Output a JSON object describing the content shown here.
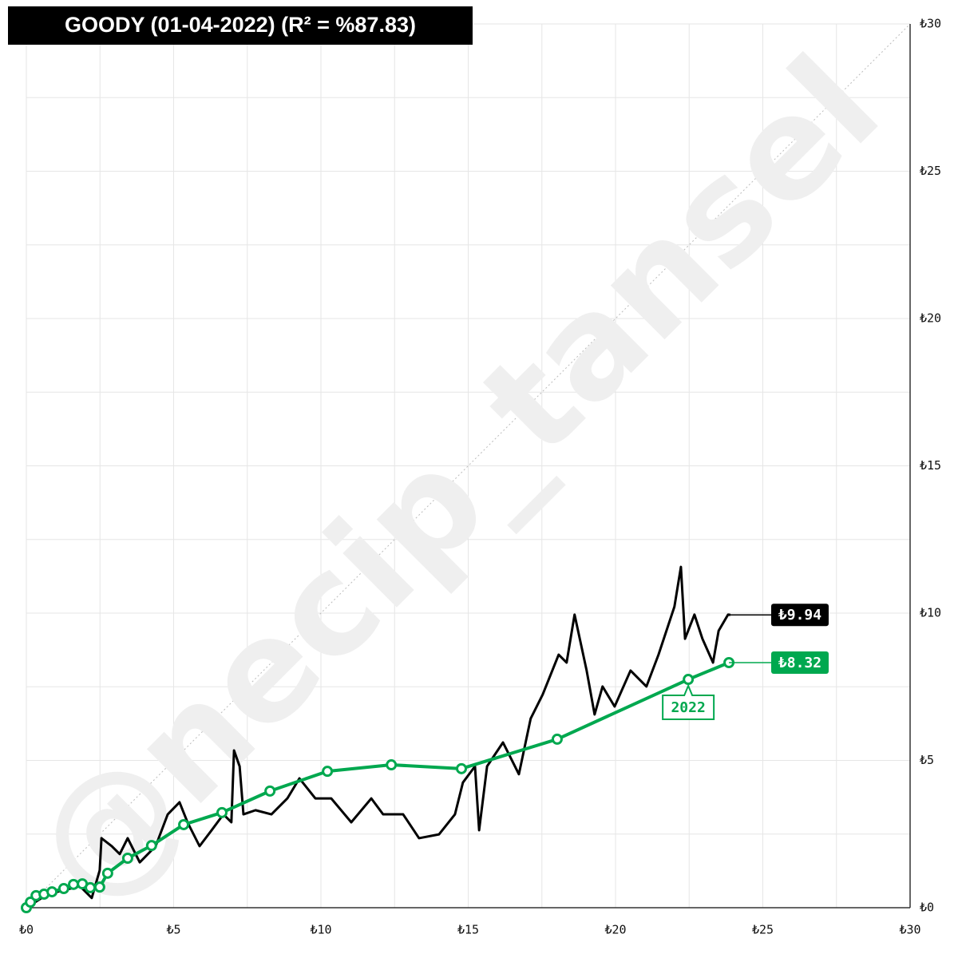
{
  "chart_data": {
    "type": "line",
    "title": "GOODY (01-04-2022) (R² = %87.83)",
    "watermark": "@necip_tansel",
    "xlim": [
      0,
      30
    ],
    "ylim": [
      0,
      30
    ],
    "xticks": [
      {
        "value": 0,
        "label": "₺0"
      },
      {
        "value": 5,
        "label": "₺5"
      },
      {
        "value": 10,
        "label": "₺10"
      },
      {
        "value": 15,
        "label": "₺15"
      },
      {
        "value": 20,
        "label": "₺20"
      },
      {
        "value": 25,
        "label": "₺25"
      },
      {
        "value": 30,
        "label": "₺30"
      }
    ],
    "yticks": [
      {
        "value": 0,
        "label": "₺0"
      },
      {
        "value": 5,
        "label": "₺5"
      },
      {
        "value": 10,
        "label": "₺10"
      },
      {
        "value": 15,
        "label": "₺15"
      },
      {
        "value": 20,
        "label": "₺20"
      },
      {
        "value": 25,
        "label": "₺25"
      },
      {
        "value": 30,
        "label": "₺30"
      }
    ],
    "minor_xticks": [
      2.5,
      7.5,
      12.5,
      17.5,
      22.5,
      27.5
    ],
    "minor_yticks": [
      2.5,
      7.5,
      12.5,
      17.5,
      22.5,
      27.5
    ],
    "grid": true,
    "series": [
      {
        "name": "GOODY",
        "color": "#000000",
        "markers": false,
        "last_label": "₺9.94",
        "x": [
          0,
          0.73,
          1.82,
          2.22,
          2.49,
          2.55,
          2.9,
          3.17,
          3.44,
          3.85,
          4.39,
          4.8,
          5.2,
          5.47,
          5.88,
          6.29,
          6.69,
          6.96,
          7.05,
          7.24,
          7.37,
          7.78,
          8.32,
          8.86,
          9.27,
          9.81,
          10.35,
          11.03,
          11.71,
          12.11,
          12.79,
          13.33,
          14.01,
          14.55,
          14.82,
          15.23,
          15.37,
          15.64,
          16.18,
          16.72,
          17.12,
          17.53,
          18.07,
          18.34,
          18.61,
          19.02,
          19.29,
          19.56,
          19.97,
          20.51,
          21.05,
          21.46,
          22.0,
          22.22,
          22.36,
          22.68,
          22.95,
          23.31,
          23.5,
          23.82,
          23.9
        ],
        "values": [
          0,
          0.46,
          0.73,
          0.33,
          1.27,
          2.36,
          2.09,
          1.82,
          2.36,
          1.54,
          2.09,
          3.17,
          3.58,
          2.9,
          2.09,
          2.63,
          3.17,
          2.9,
          5.34,
          4.8,
          3.17,
          3.31,
          3.17,
          3.71,
          4.39,
          3.71,
          3.71,
          2.9,
          3.71,
          3.17,
          3.17,
          2.36,
          2.49,
          3.17,
          4.25,
          4.8,
          2.63,
          4.8,
          5.61,
          4.53,
          6.42,
          7.24,
          8.59,
          8.32,
          9.95,
          8.05,
          6.56,
          7.51,
          6.83,
          8.05,
          7.51,
          8.59,
          10.22,
          11.57,
          9.13,
          9.95,
          9.13,
          8.32,
          9.4,
          9.95,
          9.94
        ]
      },
      {
        "name": "Trend",
        "color": "#00a84f",
        "markers": true,
        "last_label": "₺8.32",
        "x": [
          0,
          0.14,
          0.33,
          0.6,
          0.87,
          1.27,
          1.6,
          1.9,
          2.17,
          2.49,
          2.76,
          3.44,
          4.25,
          5.34,
          6.64,
          8.27,
          10.22,
          12.39,
          14.77,
          18.02,
          22.47,
          23.85
        ],
        "values": [
          0,
          0.19,
          0.41,
          0.46,
          0.54,
          0.65,
          0.79,
          0.81,
          0.68,
          0.7,
          1.17,
          1.68,
          2.11,
          2.82,
          3.23,
          3.96,
          4.63,
          4.85,
          4.72,
          5.72,
          7.75,
          8.32
        ]
      }
    ],
    "annotations": [
      {
        "text": "2022",
        "series": 1,
        "index": 20
      }
    ]
  }
}
